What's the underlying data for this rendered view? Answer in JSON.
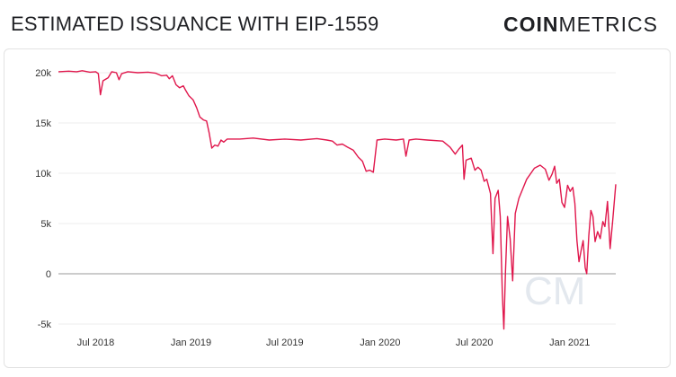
{
  "header": {
    "title": "ESTIMATED ISSUANCE WITH EIP-1559",
    "brand_bold": "COIN",
    "brand_light": "METRICS",
    "watermark": "CM"
  },
  "chart_data": {
    "type": "line",
    "title": "ESTIMATED ISSUANCE WITH EIP-1559",
    "xlabel": "",
    "ylabel": "",
    "ylim": [
      -5000,
      20000
    ],
    "y_ticks": [
      -5000,
      0,
      5000,
      10000,
      15000,
      20000
    ],
    "y_tick_labels": [
      "-5k",
      "0",
      "5k",
      "10k",
      "15k",
      "20k"
    ],
    "x_ticks": [
      "2018-07-01",
      "2019-01-01",
      "2019-07-01",
      "2020-01-01",
      "2020-07-01",
      "2021-01-01"
    ],
    "x_tick_labels": [
      "Jul 2018",
      "Jan 2019",
      "Jul 2019",
      "Jan 2020",
      "Jul 2020",
      "Jan 2021"
    ],
    "grid": true,
    "line_color": "#e0174c",
    "zero_line_color": "#999999",
    "series": [
      {
        "name": "",
        "points": [
          [
            "2018-04-20",
            20100
          ],
          [
            "2018-05-10",
            20150
          ],
          [
            "2018-05-25",
            20100
          ],
          [
            "2018-06-05",
            20200
          ],
          [
            "2018-06-20",
            20050
          ],
          [
            "2018-07-01",
            20100
          ],
          [
            "2018-07-06",
            19900
          ],
          [
            "2018-07-10",
            17800
          ],
          [
            "2018-07-15",
            19200
          ],
          [
            "2018-07-25",
            19500
          ],
          [
            "2018-08-01",
            20100
          ],
          [
            "2018-08-10",
            20000
          ],
          [
            "2018-08-15",
            19300
          ],
          [
            "2018-08-20",
            19900
          ],
          [
            "2018-09-01",
            20100
          ],
          [
            "2018-09-20",
            20000
          ],
          [
            "2018-10-10",
            20050
          ],
          [
            "2018-10-25",
            19950
          ],
          [
            "2018-11-05",
            19700
          ],
          [
            "2018-11-15",
            19750
          ],
          [
            "2018-11-20",
            19400
          ],
          [
            "2018-11-26",
            19700
          ],
          [
            "2018-12-03",
            18800
          ],
          [
            "2018-12-10",
            18500
          ],
          [
            "2018-12-17",
            18700
          ],
          [
            "2018-12-21",
            18300
          ],
          [
            "2018-12-28",
            17700
          ],
          [
            "2019-01-05",
            17300
          ],
          [
            "2019-01-12",
            16500
          ],
          [
            "2019-01-18",
            15600
          ],
          [
            "2019-01-25",
            15300
          ],
          [
            "2019-01-31",
            15200
          ],
          [
            "2019-02-05",
            14000
          ],
          [
            "2019-02-10",
            12500
          ],
          [
            "2019-02-16",
            12800
          ],
          [
            "2019-02-22",
            12700
          ],
          [
            "2019-02-28",
            13300
          ],
          [
            "2019-03-05",
            13100
          ],
          [
            "2019-03-12",
            13400
          ],
          [
            "2019-04-05",
            13400
          ],
          [
            "2019-05-01",
            13500
          ],
          [
            "2019-06-01",
            13300
          ],
          [
            "2019-07-01",
            13400
          ],
          [
            "2019-08-01",
            13300
          ],
          [
            "2019-09-01",
            13450
          ],
          [
            "2019-09-20",
            13300
          ],
          [
            "2019-10-01",
            13200
          ],
          [
            "2019-10-10",
            12800
          ],
          [
            "2019-10-20",
            12900
          ],
          [
            "2019-10-30",
            12600
          ],
          [
            "2019-11-10",
            12300
          ],
          [
            "2019-11-20",
            11600
          ],
          [
            "2019-11-28",
            11200
          ],
          [
            "2019-12-05",
            10200
          ],
          [
            "2019-12-12",
            10300
          ],
          [
            "2019-12-19",
            10100
          ],
          [
            "2019-12-26",
            13300
          ],
          [
            "2020-01-10",
            13400
          ],
          [
            "2020-02-01",
            13300
          ],
          [
            "2020-02-15",
            13400
          ],
          [
            "2020-02-20",
            11700
          ],
          [
            "2020-02-26",
            13300
          ],
          [
            "2020-03-10",
            13400
          ],
          [
            "2020-04-01",
            13300
          ],
          [
            "2020-05-01",
            13200
          ],
          [
            "2020-05-15",
            12600
          ],
          [
            "2020-05-25",
            11900
          ],
          [
            "2020-06-01",
            12400
          ],
          [
            "2020-06-08",
            12800
          ],
          [
            "2020-06-11",
            9400
          ],
          [
            "2020-06-15",
            11300
          ],
          [
            "2020-06-25",
            11500
          ],
          [
            "2020-07-02",
            10300
          ],
          [
            "2020-07-08",
            10600
          ],
          [
            "2020-07-14",
            10300
          ],
          [
            "2020-07-20",
            9200
          ],
          [
            "2020-07-25",
            9400
          ],
          [
            "2020-08-01",
            8000
          ],
          [
            "2020-08-06",
            2000
          ],
          [
            "2020-08-10",
            7500
          ],
          [
            "2020-08-16",
            8300
          ],
          [
            "2020-08-20",
            5700
          ],
          [
            "2020-08-24",
            -2000
          ],
          [
            "2020-08-27",
            -5500
          ],
          [
            "2020-08-30",
            200
          ],
          [
            "2020-09-03",
            5700
          ],
          [
            "2020-09-08",
            3500
          ],
          [
            "2020-09-13",
            -700
          ],
          [
            "2020-09-18",
            6000
          ],
          [
            "2020-09-25",
            7500
          ],
          [
            "2020-10-10",
            9400
          ],
          [
            "2020-10-25",
            10500
          ],
          [
            "2020-11-05",
            10800
          ],
          [
            "2020-11-15",
            10400
          ],
          [
            "2020-11-22",
            9300
          ],
          [
            "2020-11-28",
            9900
          ],
          [
            "2020-12-03",
            10700
          ],
          [
            "2020-12-07",
            9000
          ],
          [
            "2020-12-12",
            9400
          ],
          [
            "2020-12-17",
            7100
          ],
          [
            "2020-12-22",
            6600
          ],
          [
            "2020-12-28",
            8800
          ],
          [
            "2021-01-02",
            8200
          ],
          [
            "2021-01-07",
            8600
          ],
          [
            "2021-01-11",
            7000
          ],
          [
            "2021-01-15",
            3300
          ],
          [
            "2021-01-19",
            1200
          ],
          [
            "2021-01-23",
            2300
          ],
          [
            "2021-01-27",
            3300
          ],
          [
            "2021-01-31",
            600
          ],
          [
            "2021-02-03",
            0
          ],
          [
            "2021-02-07",
            3800
          ],
          [
            "2021-02-11",
            6300
          ],
          [
            "2021-02-15",
            5700
          ],
          [
            "2021-02-19",
            3200
          ],
          [
            "2021-02-24",
            4200
          ],
          [
            "2021-03-01",
            3500
          ],
          [
            "2021-03-06",
            5200
          ],
          [
            "2021-03-10",
            4700
          ],
          [
            "2021-03-15",
            7200
          ],
          [
            "2021-03-20",
            2500
          ],
          [
            "2021-03-25",
            5200
          ],
          [
            "2021-03-31",
            8900
          ]
        ]
      }
    ]
  }
}
